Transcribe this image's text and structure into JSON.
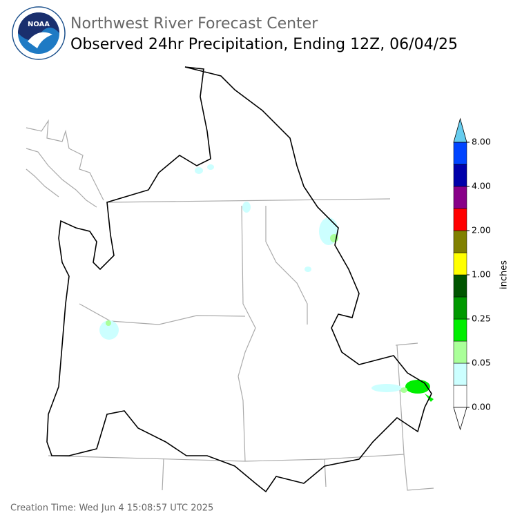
{
  "header": {
    "logo_text": "NOAA",
    "organization": "Northwest River Forecast Center",
    "title": "Observed 24hr Precipitation, Ending 12Z, 06/04/25"
  },
  "colorbar": {
    "label": "inches",
    "colors": [
      "#ffffff",
      "#ccffff",
      "#aaff99",
      "#00ee00",
      "#009900",
      "#005500",
      "#ffff00",
      "#808000",
      "#ff0000",
      "#880088",
      "#0000aa",
      "#0044ff"
    ],
    "over_color": "#66ccee",
    "under_color": "#ffffff",
    "ticks": [
      {
        "value": 0,
        "label": "0.00"
      },
      {
        "value": 0.05,
        "label": "0.05"
      },
      {
        "value": 0.25,
        "label": "0.25"
      },
      {
        "value": 1,
        "label": "1.00"
      },
      {
        "value": 2,
        "label": "2.00"
      },
      {
        "value": 4,
        "label": "4.00"
      },
      {
        "value": 8,
        "label": "8.00"
      }
    ]
  },
  "footer": {
    "creation_time": "Creation Time: Wed Jun 4 15:08:57 UTC 2025"
  }
}
